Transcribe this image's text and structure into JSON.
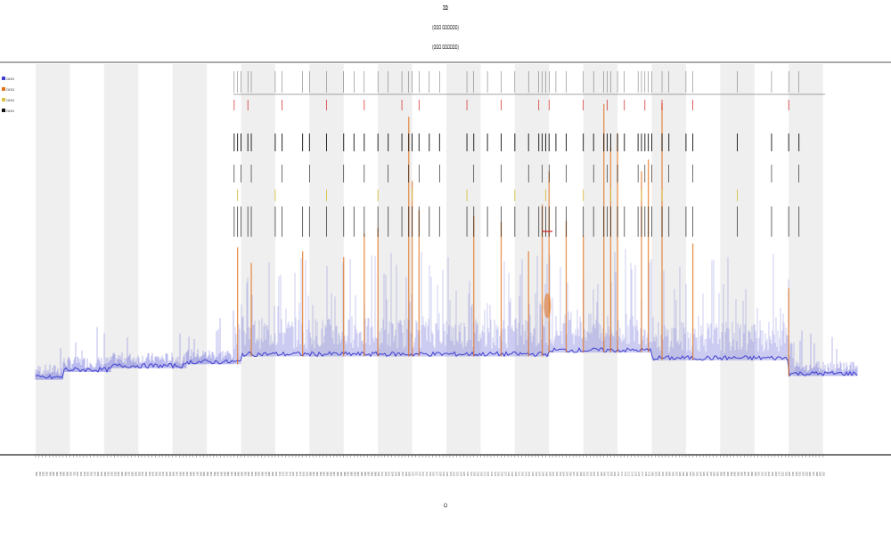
{
  "chart_data": {
    "type": "line",
    "title": "ΣΩ",
    "subtitle_lines": [
      "(ΩΩΩ ΩΩΩΩΩΩ)",
      "(ΩΩΩ ΩΩΩΩΩΩ)"
    ],
    "xlabel": "Ω",
    "ylabel": "",
    "x_range": [
      0,
      240
    ],
    "ylim": [
      0,
      100
    ],
    "grid": false,
    "alternating_bands": true,
    "legend_position": "top-left",
    "colors": {
      "baseline": "#4040d0",
      "spikes": "#e0701a",
      "ticks_black": "#111111",
      "ticks_red": "#d02020",
      "ticks_yellow": "#d8c040",
      "band": "#efefef"
    },
    "series": [
      {
        "name": "ΩΩΩ",
        "color": "#4040d0"
      },
      {
        "name": "ΩΩΩ",
        "color": "#e0701a"
      },
      {
        "name": "ΩΩΩ",
        "color": "#d8c040"
      },
      {
        "name": "ΩΩΩ",
        "color": "#111111"
      }
    ],
    "baseline_levels": [
      {
        "x0": 0,
        "x1": 8,
        "y": 19
      },
      {
        "x0": 8,
        "x1": 22,
        "y": 21
      },
      {
        "x0": 22,
        "x1": 44,
        "y": 22
      },
      {
        "x0": 44,
        "x1": 60,
        "y": 23
      },
      {
        "x0": 60,
        "x1": 150,
        "y": 25
      },
      {
        "x0": 150,
        "x1": 180,
        "y": 26
      },
      {
        "x0": 180,
        "x1": 220,
        "y": 24
      },
      {
        "x0": 220,
        "x1": 240,
        "y": 20
      }
    ],
    "orange_spikes": [
      {
        "x": 59,
        "h": 40
      },
      {
        "x": 63,
        "h": 32
      },
      {
        "x": 78,
        "h": 36
      },
      {
        "x": 90,
        "h": 34
      },
      {
        "x": 96,
        "h": 42
      },
      {
        "x": 100,
        "h": 44
      },
      {
        "x": 109,
        "h": 82
      },
      {
        "x": 110,
        "h": 60
      },
      {
        "x": 112,
        "h": 50
      },
      {
        "x": 128,
        "h": 48
      },
      {
        "x": 136,
        "h": 46
      },
      {
        "x": 144,
        "h": 36
      },
      {
        "x": 148,
        "h": 52
      },
      {
        "x": 150,
        "h": 62
      },
      {
        "x": 155,
        "h": 45
      },
      {
        "x": 160,
        "h": 40
      },
      {
        "x": 166,
        "h": 85
      },
      {
        "x": 168,
        "h": 70
      },
      {
        "x": 170,
        "h": 75
      },
      {
        "x": 177,
        "h": 62
      },
      {
        "x": 179,
        "h": 66
      },
      {
        "x": 183,
        "h": 88
      },
      {
        "x": 192,
        "h": 40
      },
      {
        "x": 220,
        "h": 30
      }
    ],
    "event_x": [
      58,
      59,
      60,
      62,
      63,
      70,
      72,
      78,
      80,
      85,
      90,
      93,
      96,
      100,
      103,
      107,
      109,
      110,
      112,
      115,
      118,
      126,
      128,
      132,
      136,
      140,
      144,
      147,
      148,
      149,
      150,
      152,
      155,
      160,
      163,
      166,
      167,
      168,
      170,
      172,
      176,
      177,
      178,
      179,
      180,
      183,
      185,
      190,
      192,
      205,
      215,
      220,
      223
    ]
  }
}
